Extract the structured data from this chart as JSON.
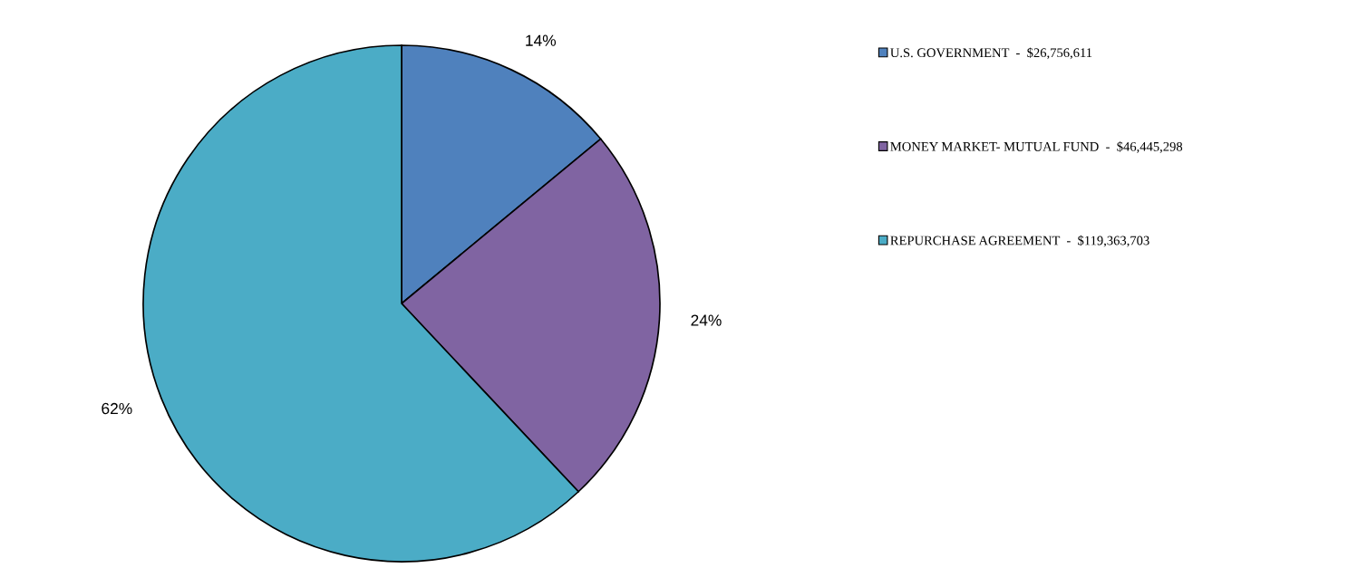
{
  "chart_data": {
    "type": "pie",
    "categories": [
      "U.S. GOVERNMENT  -  $26,756,611",
      "MONEY MARKET- MUTUAL FUND  -  $46,445,298",
      "REPURCHASE AGREEMENT  -  $119,363,703"
    ],
    "values": [
      14,
      24,
      62
    ],
    "value_labels": [
      "14%",
      "24%",
      "62%"
    ],
    "colors": [
      "#4f81bd",
      "#8064a2",
      "#4bacc6"
    ],
    "legend": "top right"
  }
}
